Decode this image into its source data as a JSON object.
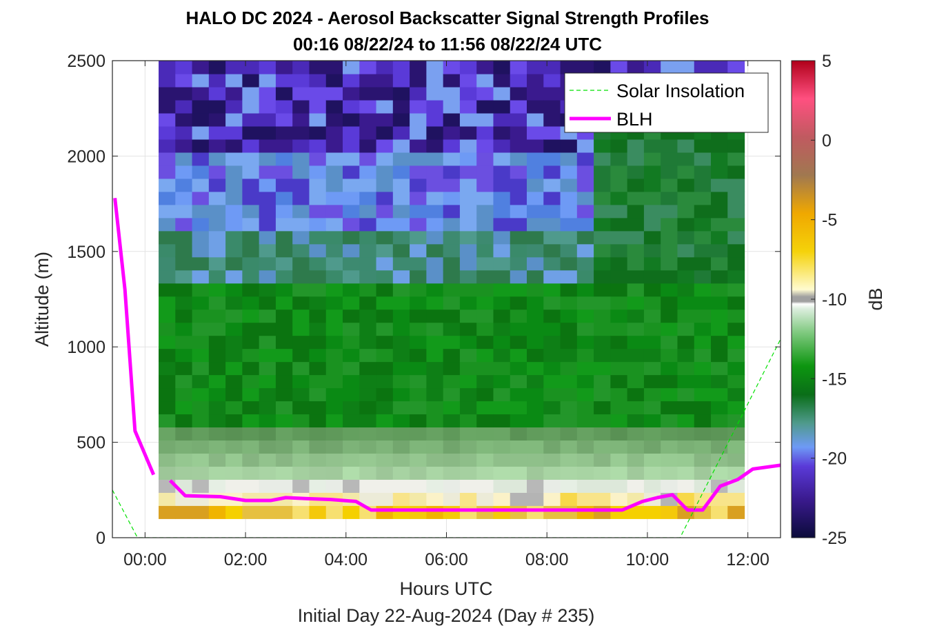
{
  "chart_data": {
    "type": "heatmap",
    "title": "HALO DC 2024 - Aerosol Backscatter Signal Strength Profiles",
    "subtitle": "00:16 08/22/24 to 11:56 08/22/24  UTC",
    "xlabel": "Hours UTC",
    "xlabel2": "Initial Day 22-Aug-2024 (Day # 235)",
    "ylabel": "Altitude (m)",
    "xlim": [
      -0.65,
      12.65
    ],
    "ylim": [
      0,
      2500
    ],
    "x_ticks": [
      0,
      2,
      4,
      6,
      8,
      10,
      12
    ],
    "x_tick_labels": [
      "00:00",
      "02:00",
      "04:00",
      "06:00",
      "08:00",
      "10:00",
      "12:00"
    ],
    "y_ticks": [
      0,
      500,
      1000,
      1500,
      2000,
      2500
    ],
    "y_tick_labels": [
      "0",
      "500",
      "1000",
      "1500",
      "2000",
      "2500"
    ],
    "grid": true,
    "colorbar": {
      "label": "dB",
      "range": [
        -25,
        5
      ],
      "ticks": [
        5,
        0,
        -5,
        -10,
        -15,
        -20,
        -25
      ],
      "tick_labels": [
        "5",
        "0",
        "-5",
        "-10",
        "-15",
        "-20",
        "-25"
      ]
    },
    "heatmap": {
      "x_start": 0.27,
      "x_end": 11.93,
      "y_start": 100,
      "y_end": 2500,
      "columns": 35,
      "rows": 35,
      "value_units": "dB"
    },
    "legend": {
      "position": "top-right",
      "entries": [
        {
          "label": "Solar Insolation",
          "style": "dashed",
          "color": "#00e000"
        },
        {
          "label": "BLH",
          "style": "solid",
          "color": "#ff00ff"
        }
      ]
    },
    "series": [
      {
        "name": "BLH",
        "color": "#ff00ff",
        "segments": [
          {
            "x": [
              -0.6,
              -0.4,
              -0.2,
              0.17
            ],
            "y": [
              1780,
              1300,
              560,
              330
            ]
          },
          {
            "x": [
              0.5,
              0.8,
              1.5,
              2.0,
              2.5,
              2.8,
              3.2,
              3.7,
              4.2,
              4.5,
              5.0,
              6.0,
              7.0,
              8.0,
              8.5,
              9.0,
              9.5,
              9.9,
              10.2,
              10.5,
              10.8,
              11.1,
              11.45,
              11.8,
              12.1,
              12.65
            ],
            "y": [
              300,
              220,
              215,
              195,
              195,
              210,
              205,
              200,
              190,
              145,
              145,
              145,
              145,
              145,
              145,
              145,
              145,
              190,
              210,
              225,
              145,
              145,
              270,
              305,
              360,
              380
            ]
          }
        ]
      },
      {
        "name": "Solar Insolation",
        "color": "#00e000",
        "x": [
          -0.65,
          -0.15,
          10.65,
          12.65
        ],
        "y": [
          250,
          0,
          0,
          1040
        ]
      }
    ]
  }
}
